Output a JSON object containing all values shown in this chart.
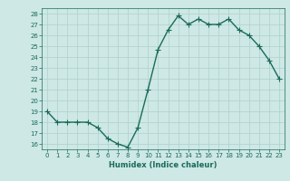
{
  "x": [
    0,
    1,
    2,
    3,
    4,
    5,
    6,
    7,
    8,
    9,
    10,
    11,
    12,
    13,
    14,
    15,
    16,
    17,
    18,
    19,
    20,
    21,
    22,
    23
  ],
  "y": [
    19,
    18,
    18,
    18,
    18,
    17.5,
    16.5,
    16,
    15.7,
    17.5,
    21,
    24.7,
    26.5,
    27.8,
    27,
    27.5,
    27,
    27,
    27.5,
    26.5,
    26,
    25,
    23.7,
    22
  ],
  "line_color": "#1a6b5a",
  "marker_color": "#1a6b5a",
  "bg_color": "#cde8e5",
  "grid_color": "#aed0cc",
  "xlabel": "Humidex (Indice chaleur)",
  "ylabel": "",
  "xlim": [
    -0.5,
    23.5
  ],
  "ylim": [
    15.5,
    28.5
  ],
  "yticks": [
    16,
    17,
    18,
    19,
    20,
    21,
    22,
    23,
    24,
    25,
    26,
    27,
    28
  ],
  "xticks": [
    0,
    1,
    2,
    3,
    4,
    5,
    6,
    7,
    8,
    9,
    10,
    11,
    12,
    13,
    14,
    15,
    16,
    17,
    18,
    19,
    20,
    21,
    22,
    23
  ],
  "tick_label_color": "#1a6b5a",
  "xlabel_color": "#1a6b5a",
  "axis_color": "#1a6b5a",
  "marker_size": 3,
  "line_width": 1.0
}
